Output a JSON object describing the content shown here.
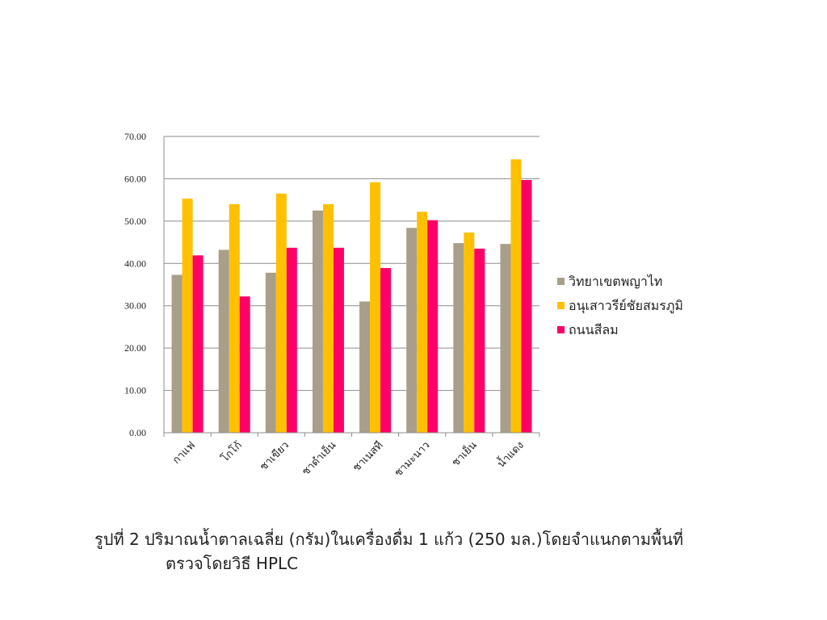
{
  "chart_data": {
    "type": "bar",
    "categories": [
      "กาแฟ",
      "โกโก้",
      "ชาเขียว",
      "ชาดำเย็น",
      "ชาเนสที",
      "ชามะนาว",
      "ชาเย็น",
      "น้ำแดง"
    ],
    "series": [
      {
        "name": "วิทยาเขตพญาไท",
        "color": "#A89F8A",
        "values": [
          37.3,
          43.2,
          37.8,
          52.5,
          31.0,
          48.4,
          44.8,
          44.6
        ]
      },
      {
        "name": "อนุเสาวรีย์ชัยสมรภูมิ",
        "color": "#FFC000",
        "values": [
          55.3,
          54.0,
          56.5,
          54.0,
          59.2,
          52.2,
          47.3,
          64.6
        ]
      },
      {
        "name": "ถนนสีลม",
        "color": "#FF0066",
        "values": [
          41.9,
          32.2,
          43.7,
          43.7,
          38.9,
          50.2,
          43.5,
          59.7
        ]
      }
    ],
    "yticks": [
      "0.00",
      "10.00",
      "20.00",
      "30.00",
      "40.00",
      "50.00",
      "60.00",
      "70.00"
    ],
    "ylim": [
      0,
      70
    ],
    "grid": true,
    "legend": "right",
    "title": "",
    "xlabel": "",
    "ylabel": ""
  },
  "caption": {
    "line1": "รูปที่ 2  ปริมาณน้ำตาลเฉลี่ย (กรัม)ในเครื่องดื่ม 1 แก้ว (250 มล.)โดยจำแนกตามพื้นที่",
    "line2": "ตรวจโดยวิธี HPLC"
  }
}
